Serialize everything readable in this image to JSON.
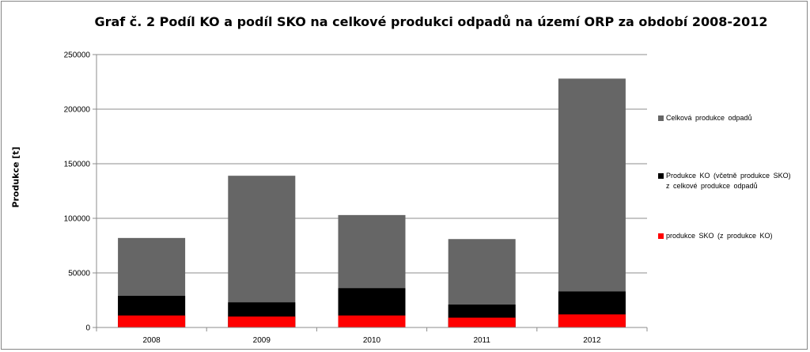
{
  "chart_data": {
    "type": "bar",
    "stacking": "overlap",
    "title": "Graf č. 2 Podíl KO a podíl SKO na celkové produkci odpadů na území ORP za období 2008-2012",
    "ylabel": "Produkce [t]",
    "xlabel": "",
    "ylim": [
      0,
      250000
    ],
    "yticks": [
      "0",
      "50000",
      "100000",
      "150000",
      "200000",
      "250000"
    ],
    "categories": [
      "2008",
      "2009",
      "2010",
      "2011",
      "2012"
    ],
    "series": [
      {
        "name": "Celková produkce odpadů",
        "color": "#666666",
        "values": [
          82000,
          139000,
          103000,
          81000,
          228000
        ]
      },
      {
        "name": "Produkce KO (včetně produkce SKO) z celkové produkce odpadů",
        "color": "#000000",
        "values": [
          29000,
          23000,
          36000,
          21000,
          33000
        ]
      },
      {
        "name": "produkce SKO (z produkce KO)",
        "color": "#ff0000",
        "values": [
          11000,
          10000,
          11000,
          9000,
          12000
        ]
      }
    ],
    "grid": true,
    "legend": "right"
  }
}
